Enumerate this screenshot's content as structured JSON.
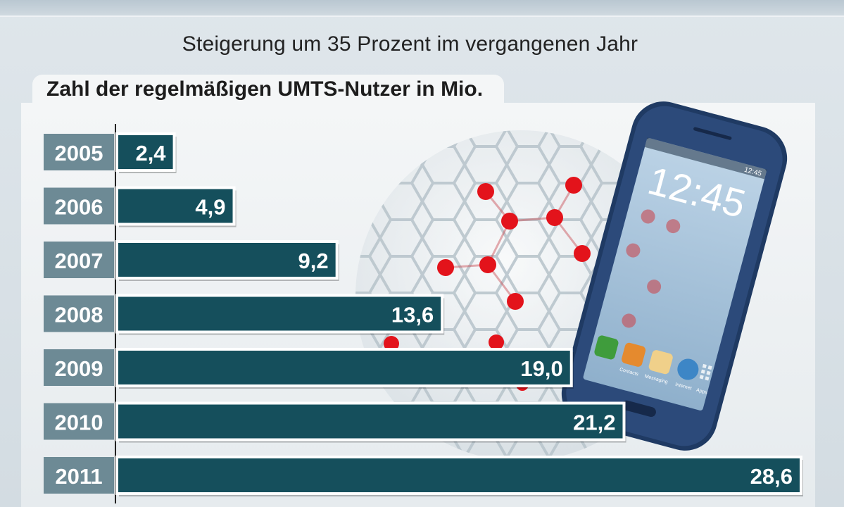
{
  "subtitle": "Steigerung um 35 Prozent im vergangenen Jahr",
  "colors": {
    "bar": "#154f5c",
    "year_box": "#6d8a95",
    "phone_body": "#2c4a7a",
    "dots": "#e3131b"
  },
  "phone": {
    "clock": "12:45",
    "status_time": "12:45",
    "apps": [
      "Contacts",
      "Messaging",
      "Internet",
      "Apps"
    ]
  },
  "chart_data": {
    "type": "bar",
    "orientation": "horizontal",
    "title": "Zahl der regelmäßigen UMTS-Nutzer in Mio.",
    "categories": [
      "2005",
      "2006",
      "2007",
      "2008",
      "2009",
      "2010",
      "2011"
    ],
    "values": [
      2.4,
      4.9,
      9.2,
      13.6,
      19.0,
      21.2,
      28.6
    ],
    "value_labels": [
      "2,4",
      "4,9",
      "9,2",
      "13,6",
      "19,0",
      "21,2",
      "28,6"
    ],
    "xlabel": "",
    "ylabel": "",
    "xlim": [
      0,
      28.6
    ]
  }
}
